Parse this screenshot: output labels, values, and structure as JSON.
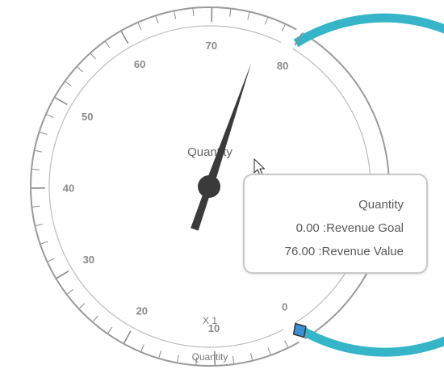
{
  "gauge": {
    "title": "Quantity",
    "scale_min": 0,
    "scale_max": 80,
    "major_step": 10,
    "minor_step": 2,
    "tick_labels": [
      "0",
      "10",
      "20",
      "30",
      "40",
      "50",
      "60",
      "70",
      "80"
    ],
    "multiplier_label": "X 1",
    "bottom_caption": "Quantity",
    "needle_value": 76,
    "marker_value": 0,
    "range_color": "#36b5c9",
    "needle_color": "#3a3a3a",
    "marker_color": "#3a8fd6",
    "ring_color": "#9a9a9a"
  },
  "tooltip": {
    "title": "Quantity",
    "goal_line": "0.00 :Revenue Goal",
    "value_line": "76.00 :Revenue Value"
  },
  "cursor": {
    "icon": "mouse-pointer-icon"
  }
}
